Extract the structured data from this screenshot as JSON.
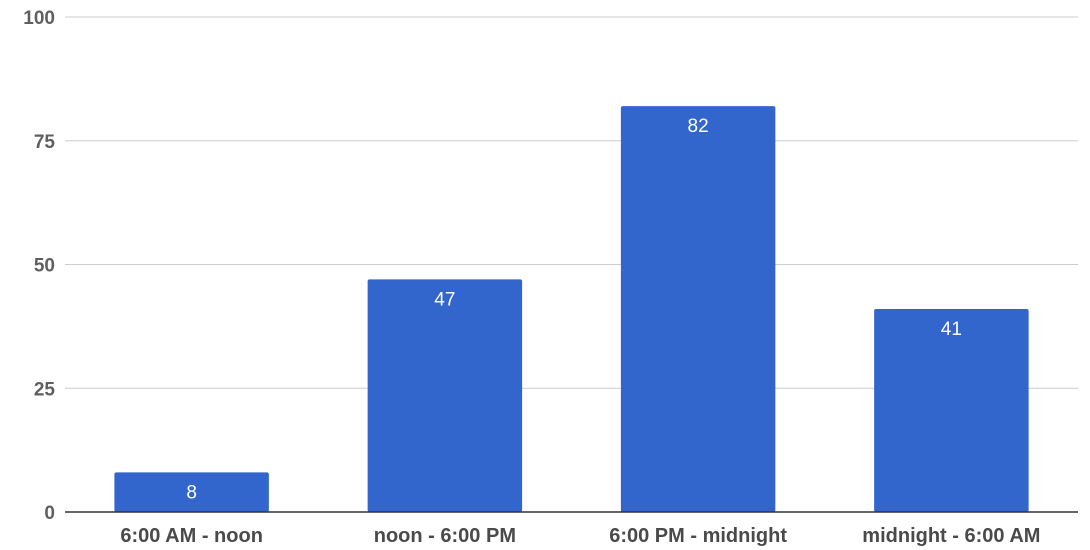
{
  "chart_data": {
    "type": "bar",
    "title": "",
    "xlabel": "",
    "ylabel": "",
    "categories": [
      "6:00 AM - noon",
      "noon - 6:00 PM",
      "6:00 PM - midnight",
      "midnight - 6:00 AM"
    ],
    "values": [
      8,
      47,
      82,
      41
    ],
    "data_labels": [
      "8",
      "47",
      "82",
      "41"
    ],
    "ylim": [
      0,
      100
    ],
    "yticks": [
      0,
      25,
      50,
      75,
      100
    ],
    "ytick_labels": [
      "0",
      "25",
      "50",
      "75",
      "100"
    ],
    "grid": true,
    "legend": "none",
    "colors": {
      "bar": "#3366cc",
      "grid": "#cccccc",
      "axis": "#333333"
    }
  }
}
